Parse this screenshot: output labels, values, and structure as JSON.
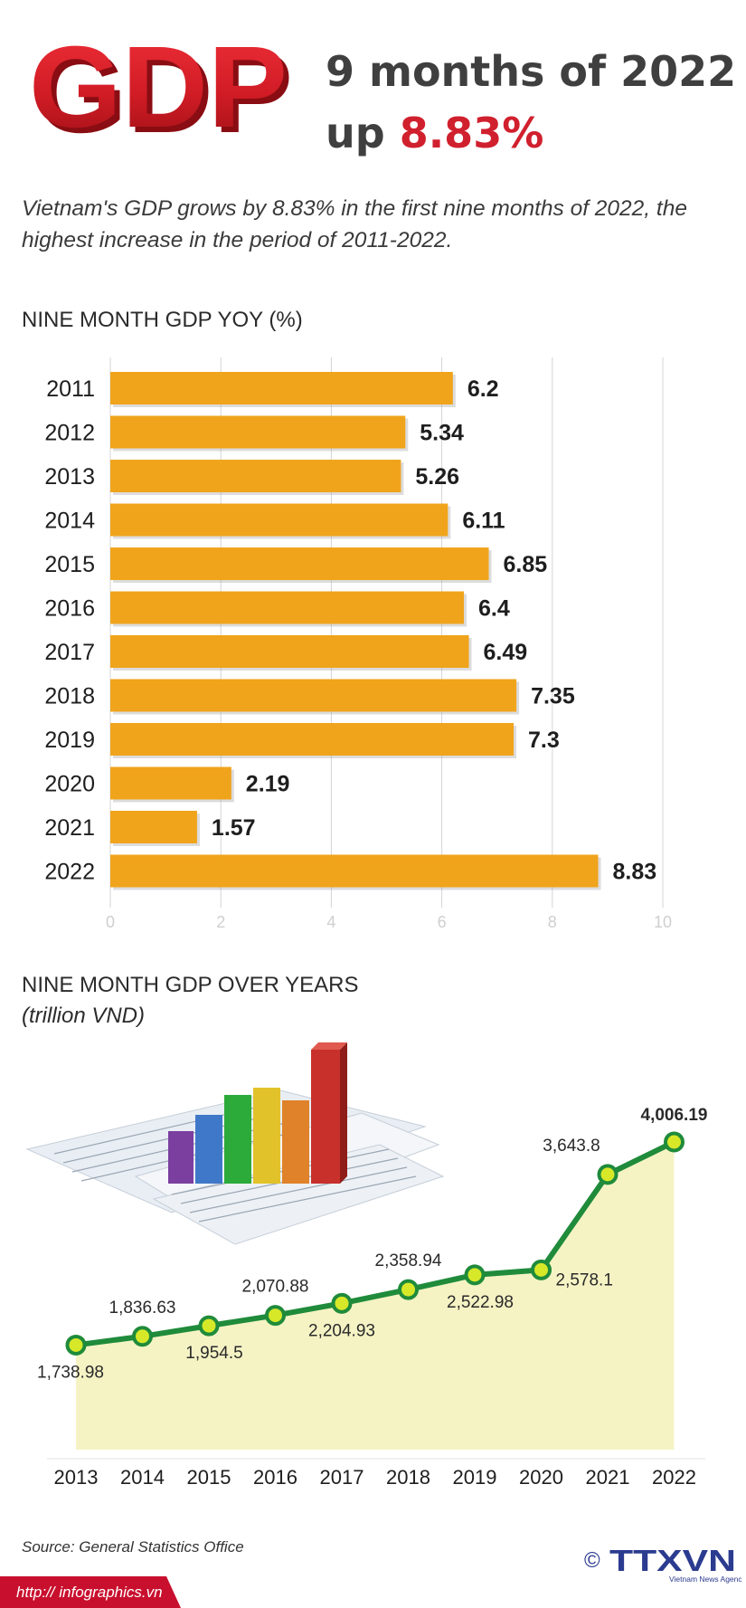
{
  "header": {
    "logo_text": "GDP",
    "headline_line1": "9 months of 2022",
    "headline_line2_prefix": "up",
    "headline_line2_value": "8.83%"
  },
  "subtitle": "Vietnam's GDP grows by 8.83% in the first nine months of 2022, the highest increase in the period of 2011-2022.",
  "colors": {
    "bar": "#f0a41c",
    "line": "#1f8b3b",
    "marker_fill": "#d7e829",
    "area": "#f5f3c4",
    "accent_red": "#d0202e"
  },
  "chart_data": [
    {
      "type": "bar",
      "title": "NINE MONTH GDP YOY (%)",
      "orientation": "horizontal",
      "categories": [
        "2011",
        "2012",
        "2013",
        "2014",
        "2015",
        "2016",
        "2017",
        "2018",
        "2019",
        "2020",
        "2021",
        "2022"
      ],
      "values": [
        6.2,
        5.34,
        5.26,
        6.11,
        6.85,
        6.4,
        6.49,
        7.35,
        7.3,
        2.19,
        1.57,
        8.83
      ],
      "value_labels": [
        "6.2",
        "5.34",
        "5.26",
        "6.11",
        "6.85",
        "6.4",
        "6.49",
        "7.35",
        "7.3",
        "2.19",
        "1.57",
        "8.83"
      ],
      "xlim": [
        0,
        10
      ],
      "xticks": [
        0,
        2,
        4,
        6,
        8,
        10
      ],
      "grid": true
    },
    {
      "type": "line",
      "title": "NINE MONTH GDP OVER YEARS",
      "subtitle": "(trillion VND)",
      "x": [
        "2013",
        "2014",
        "2015",
        "2016",
        "2017",
        "2018",
        "2019",
        "2020",
        "2021",
        "2022"
      ],
      "values": [
        1738.98,
        1836.63,
        1954.5,
        2070.88,
        2204.93,
        2358.94,
        2522.98,
        2578.1,
        3643.8,
        4006.19
      ],
      "value_labels": [
        "1,738.98",
        "1,836.63",
        "1,954.5",
        "2,070.88",
        "2,204.93",
        "2,358.94",
        "2,522.98",
        "2,578.1",
        "3,643.8",
        "4,006.19"
      ],
      "area_fill": true
    }
  ],
  "footer": {
    "source": "Source: General Statistics Office",
    "url": "http:// infographics.vn",
    "copyright": "©",
    "brand": "TTXVN",
    "brand_sub": "Vietnam News Agency"
  }
}
